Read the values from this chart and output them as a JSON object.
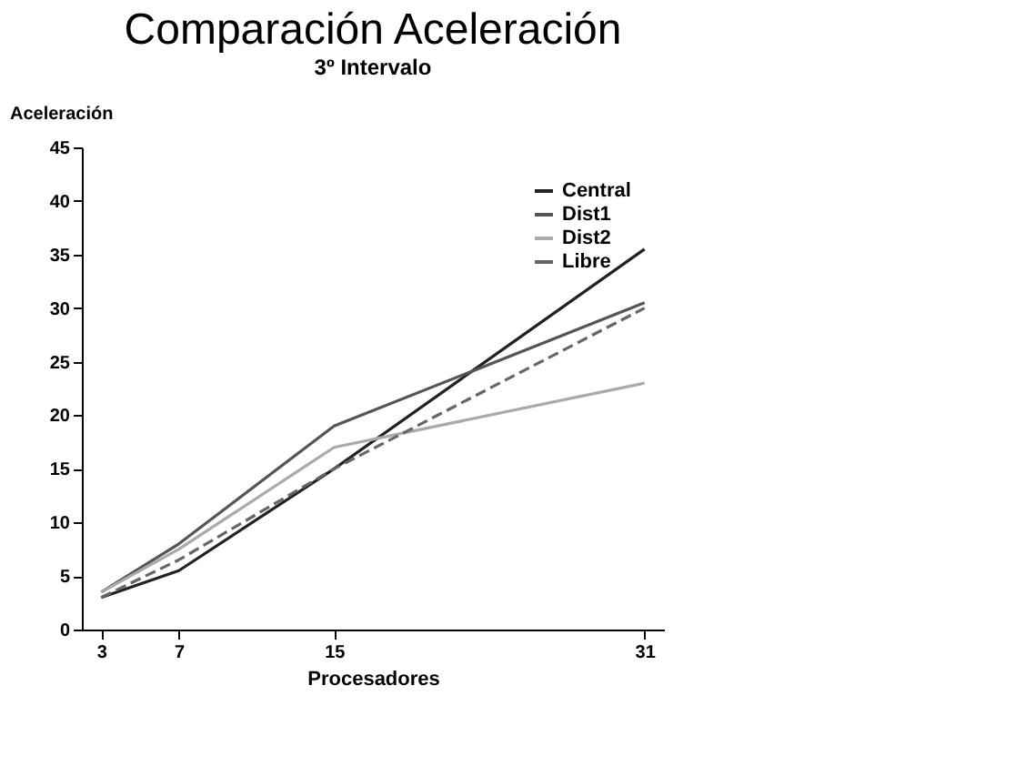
{
  "chart_data": {
    "type": "line",
    "title": "Comparación Aceleración",
    "subtitle": "3º Intervalo",
    "xlabel": "Procesadores",
    "ylabel": "Aceleración",
    "x": [
      3,
      7,
      15,
      31
    ],
    "xlim": [
      2,
      32
    ],
    "xticks": [
      3,
      7,
      15,
      31
    ],
    "ylim": [
      0,
      45
    ],
    "yticks": [
      0,
      5,
      10,
      15,
      20,
      25,
      30,
      35,
      40,
      45
    ],
    "series": [
      {
        "name": "Central",
        "color": "#222222",
        "values": [
          3,
          5.5,
          15,
          35.5
        ],
        "line_style": "solid"
      },
      {
        "name": "Dist1",
        "color": "#555555",
        "values": [
          3.5,
          8,
          19,
          30.5
        ],
        "line_style": "solid"
      },
      {
        "name": "Dist2",
        "color": "#aaaaaa",
        "values": [
          3.5,
          7.5,
          17,
          23
        ],
        "line_style": "solid"
      },
      {
        "name": "Libre",
        "color": "#666666",
        "values": [
          3,
          6.5,
          15,
          30
        ],
        "line_style": "dashed"
      }
    ],
    "grid": false,
    "legend": "top right",
    "marker": "none"
  }
}
